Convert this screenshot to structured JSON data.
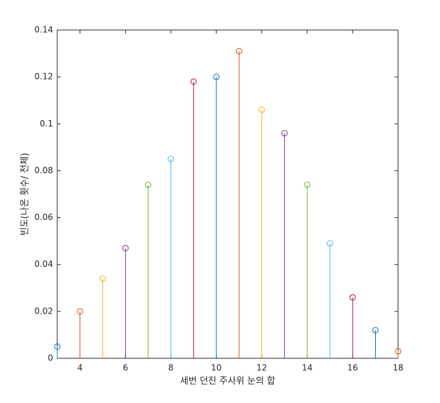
{
  "chart_data": {
    "type": "stem",
    "x_label": "세번 던진 주사위 눈의 합",
    "y_label": "빈도(나온 횟수/ 전체)",
    "x": [
      3,
      4,
      5,
      6,
      7,
      8,
      9,
      10,
      11,
      12,
      13,
      14,
      15,
      16,
      17,
      18
    ],
    "values": [
      0.005,
      0.02,
      0.034,
      0.047,
      0.074,
      0.085,
      0.118,
      0.12,
      0.131,
      0.106,
      0.096,
      0.074,
      0.049,
      0.026,
      0.012,
      0.003
    ],
    "colors": [
      "#0072BD",
      "#D95319",
      "#EDB120",
      "#7E2F8E",
      "#77AC30",
      "#4DBEEE",
      "#A2142F",
      "#0072BD",
      "#D95319",
      "#EDB120",
      "#7E2F8E",
      "#77AC30",
      "#4DBEEE",
      "#A2142F",
      "#0072BD",
      "#D95319"
    ],
    "xlim": [
      3,
      18
    ],
    "xticks": [
      4,
      6,
      8,
      10,
      12,
      14,
      16,
      18
    ],
    "ylim": [
      0,
      0.14
    ],
    "yticks": [
      0,
      0.02,
      0.04,
      0.06,
      0.08,
      0.1,
      0.12,
      0.14
    ],
    "box": true
  }
}
